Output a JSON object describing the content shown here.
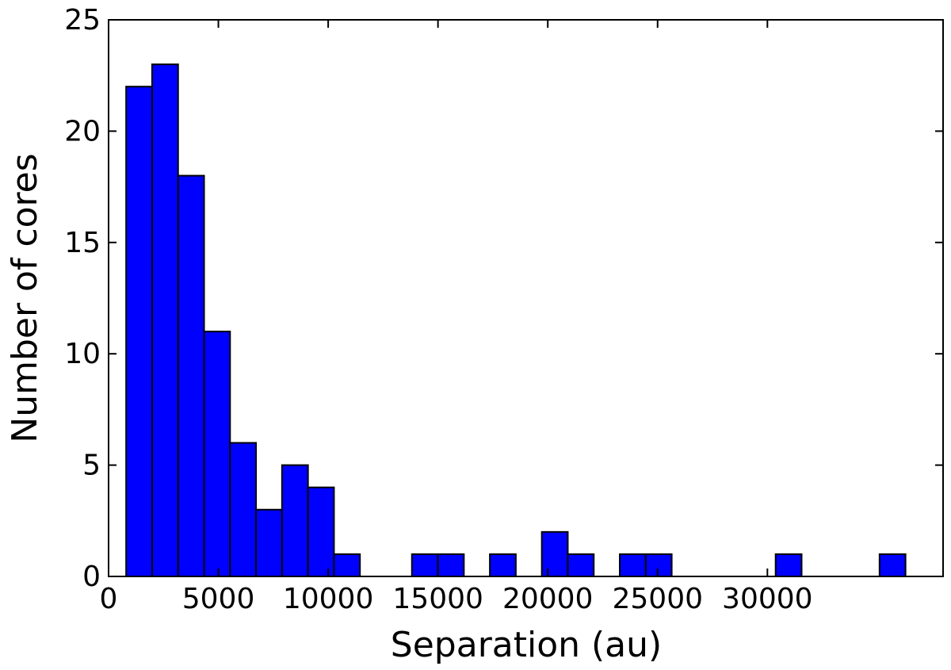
{
  "chart_data": {
    "type": "histogram",
    "x_label": "Separation (au)",
    "y_label": "Number of cores",
    "bins": [
      800,
      1983,
      3166,
      4349,
      5532,
      6715,
      7898,
      9081,
      10264,
      11447,
      12630,
      13813,
      14996,
      16179,
      17362,
      18545,
      19728,
      20911,
      22094,
      23277,
      24460,
      25643,
      26826,
      28009,
      29192,
      30375,
      31558,
      32741,
      33924,
      35107,
      36290
    ],
    "values": [
      22,
      23,
      18,
      11,
      6,
      3,
      5,
      4,
      1,
      0,
      0,
      1,
      1,
      0,
      1,
      0,
      2,
      1,
      0,
      1,
      1,
      0,
      0,
      0,
      0,
      1,
      0,
      0,
      0,
      1
    ],
    "color": "#0000ff",
    "xlim": [
      0,
      38000
    ],
    "xticks": [
      0,
      5000,
      10000,
      15000,
      20000,
      25000,
      30000
    ],
    "ylim": [
      0,
      25
    ],
    "yticks": [
      0,
      5,
      10,
      15,
      20,
      25
    ]
  }
}
